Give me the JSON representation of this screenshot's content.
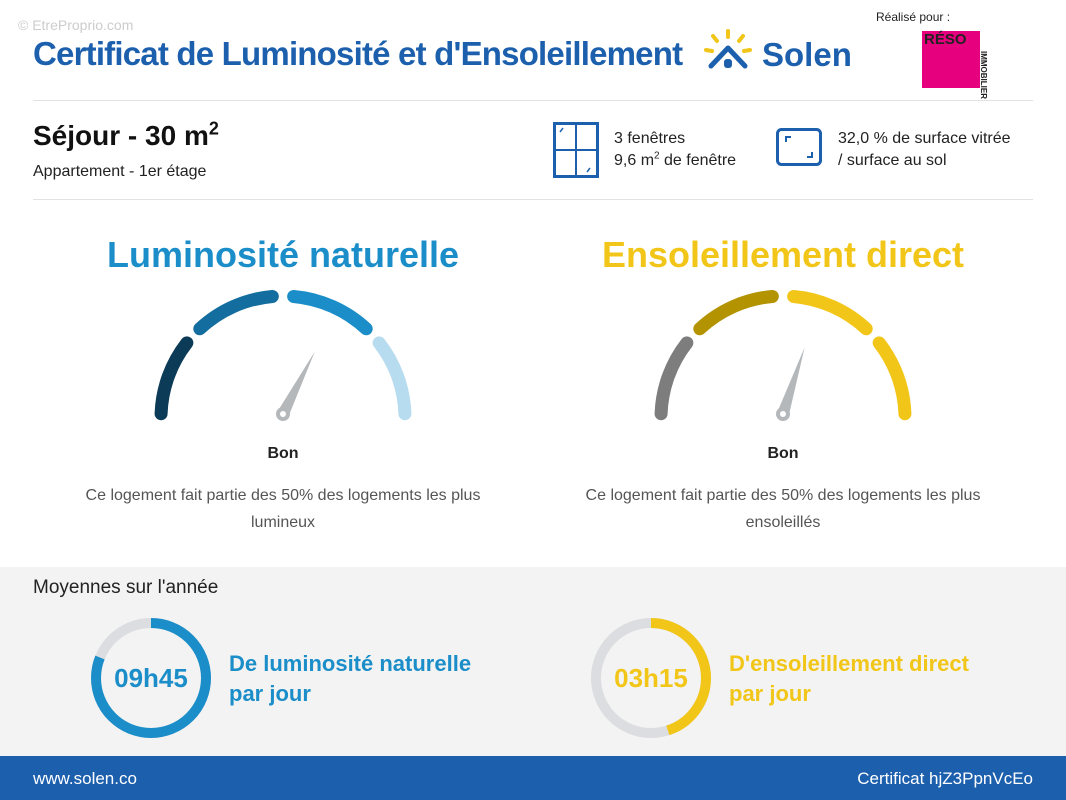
{
  "header": {
    "watermark": "© EtreProprio.com",
    "title": "Certificat de Luminosité et d'Ensoleillement",
    "brand": "Solen",
    "made_for": "Réalisé pour :",
    "partner_logo": {
      "main": "RÉSO",
      "side": "IMMOBILIER"
    }
  },
  "room": {
    "name": "Séjour - 30 m",
    "sup": "2",
    "subtitle": "Appartement - 1er étage"
  },
  "windows": {
    "count": "3 fenêtres",
    "area_prefix": "9,6 m",
    "area_sup": "2",
    "area_suffix": " de fenêtre",
    "icon": "window-icon"
  },
  "surface": {
    "line1": "32,0 % de surface vitrée",
    "line2": "/ surface au sol",
    "icon": "surface-icon"
  },
  "luminosite": {
    "title": "Luminosité naturelle",
    "rating": "Bon",
    "description": "Ce logement fait partie des 50% des logements les plus lumineux",
    "color": "#1b8ec9",
    "segment_colors": [
      "#0c3b57",
      "#136d9e",
      "#1b8ec9",
      "#b8dcef"
    ],
    "needle_level": 0.65
  },
  "ensoleillement": {
    "title": "Ensoleillement direct",
    "rating": "Bon",
    "description": "Ce logement fait partie des 50% des logements les plus ensoleillés",
    "color": "#f2c618",
    "segment_colors": [
      "#7d7d7d",
      "#b39300",
      "#f2c618",
      "#f2c618"
    ],
    "needle_level": 0.6
  },
  "averages": {
    "title": "Moyennes sur l'année",
    "light": {
      "value": "09h45",
      "line1": "De luminosité naturelle",
      "line2": "par jour",
      "fraction": 0.81,
      "color": "#1b8ec9"
    },
    "sun": {
      "value": "03h15",
      "line1": "D'ensoleillement direct",
      "line2": "par jour",
      "fraction": 0.45,
      "color": "#f2c618"
    }
  },
  "footer": {
    "website": "www.solen.co",
    "certificate": "Certificat hjZ3PpnVcEo"
  }
}
